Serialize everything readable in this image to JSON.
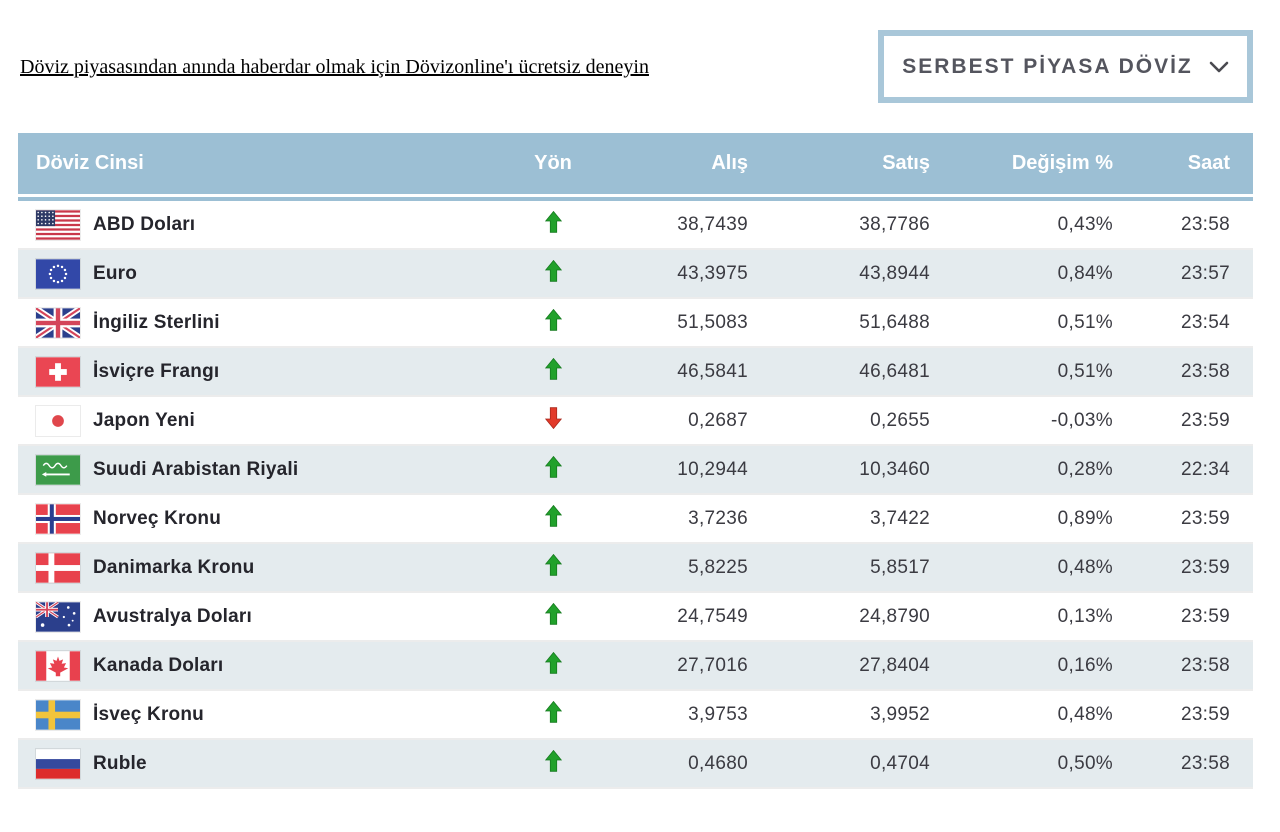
{
  "promo_link": {
    "text": "Döviz piyasasından anında haberdar olmak için Dövizonline'ı ücretsiz deneyin"
  },
  "dropdown": {
    "selected_label": "SERBEST PİYASA DÖVİZ",
    "chevron_icon": "chevron-down"
  },
  "colors": {
    "header_bg": "#9cbfd4",
    "row_alt_bg": "#e4ebee",
    "up_arrow": "#21a12b",
    "down_arrow": "#e23a2a",
    "dropdown_border": "#a9c7d9"
  },
  "table": {
    "headers": [
      "Döviz Cinsi",
      "Yön",
      "Alış",
      "Satış",
      "Değişim %",
      "Saat"
    ],
    "rows": [
      {
        "currency": "ABD Doları",
        "flag": "us",
        "direction": "up",
        "alis": "38,7439",
        "satis": "38,7786",
        "degisim": "0,43%",
        "saat": "23:58"
      },
      {
        "currency": "Euro",
        "flag": "eu",
        "direction": "up",
        "alis": "43,3975",
        "satis": "43,8944",
        "degisim": "0,84%",
        "saat": "23:57"
      },
      {
        "currency": "İngiliz Sterlini",
        "flag": "gb",
        "direction": "up",
        "alis": "51,5083",
        "satis": "51,6488",
        "degisim": "0,51%",
        "saat": "23:54"
      },
      {
        "currency": "İsviçre Frangı",
        "flag": "ch",
        "direction": "up",
        "alis": "46,5841",
        "satis": "46,6481",
        "degisim": "0,51%",
        "saat": "23:58"
      },
      {
        "currency": "Japon Yeni",
        "flag": "jp",
        "direction": "down",
        "alis": "0,2687",
        "satis": "0,2655",
        "degisim": "-0,03%",
        "saat": "23:59"
      },
      {
        "currency": "Suudi Arabistan Riyali",
        "flag": "sa",
        "direction": "up",
        "alis": "10,2944",
        "satis": "10,3460",
        "degisim": "0,28%",
        "saat": "22:34"
      },
      {
        "currency": "Norveç Kronu",
        "flag": "no",
        "direction": "up",
        "alis": "3,7236",
        "satis": "3,7422",
        "degisim": "0,89%",
        "saat": "23:59"
      },
      {
        "currency": "Danimarka Kronu",
        "flag": "dk",
        "direction": "up",
        "alis": "5,8225",
        "satis": "5,8517",
        "degisim": "0,48%",
        "saat": "23:59"
      },
      {
        "currency": "Avustralya Doları",
        "flag": "au",
        "direction": "up",
        "alis": "24,7549",
        "satis": "24,8790",
        "degisim": "0,13%",
        "saat": "23:59"
      },
      {
        "currency": "Kanada Doları",
        "flag": "ca",
        "direction": "up",
        "alis": "27,7016",
        "satis": "27,8404",
        "degisim": "0,16%",
        "saat": "23:58"
      },
      {
        "currency": "İsveç Kronu",
        "flag": "se",
        "direction": "up",
        "alis": "3,9753",
        "satis": "3,9952",
        "degisim": "0,48%",
        "saat": "23:59"
      },
      {
        "currency": "Ruble",
        "flag": "ru",
        "direction": "up",
        "alis": "0,4680",
        "satis": "0,4704",
        "degisim": "0,50%",
        "saat": "23:58"
      }
    ]
  }
}
